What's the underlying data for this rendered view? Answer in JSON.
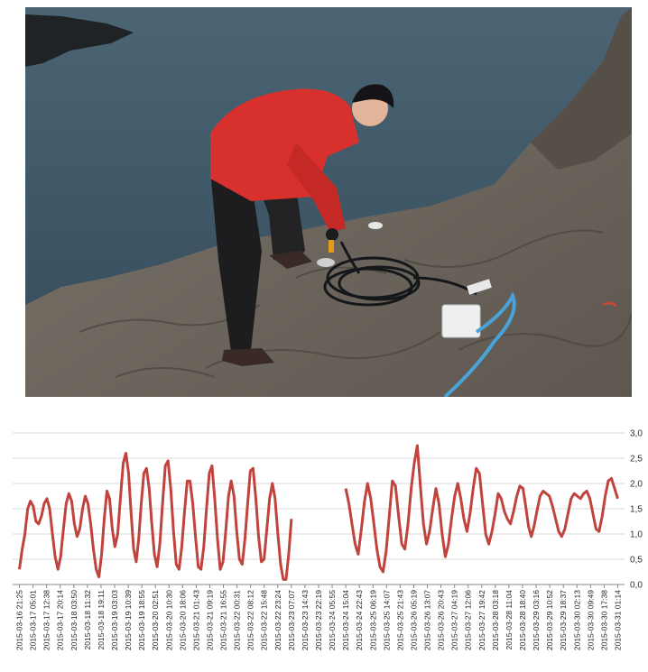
{
  "photo": {
    "subject": "researcher-with-sensor-on-coastal-rocks",
    "colors": {
      "sea": "#3f5968",
      "rock": "#6e675f",
      "jacket": "#d8302c",
      "trousers": "#1d1d1f",
      "cable": "#4aa3d8"
    }
  },
  "chart_data": {
    "type": "line",
    "title": "",
    "xlabel": "",
    "ylabel": "",
    "ylim": [
      0,
      3
    ],
    "y_ticks": [
      "0,0",
      "0,5",
      "1,0",
      "1,5",
      "2,0",
      "2,5",
      "3,0"
    ],
    "y_axis_side": "right",
    "grid": true,
    "line_color": "#c0433d",
    "x_tick_labels": [
      "2015-03-16 21:25",
      "2015-03-17 05:01",
      "2015-03-17 12:38",
      "2015-03-17 20:14",
      "2015-03-18 03:50",
      "2015-03-18 11:32",
      "2015-03-18 19:11",
      "2015-03-19 03:03",
      "2015-03-19 10:39",
      "2015-03-19 18:55",
      "2015-03-20 02:51",
      "2015-03-20 10:30",
      "2015-03-20 18:06",
      "2015-03-21 01:43",
      "2015-03-21 09:19",
      "2015-03-21 16:55",
      "2015-03-22 00:31",
      "2015-03-22 08:12",
      "2015-03-22 15:48",
      "2015-03-22 23:24",
      "2015-03-23 07:07",
      "2015-03-23 14:43",
      "2015-03-23 22:19",
      "2015-03-24 05:55",
      "2015-03-24 15:04",
      "2015-03-24 22:43",
      "2015-03-25 06:19",
      "2015-03-25 14:07",
      "2015-03-25 21:43",
      "2015-03-26 05:19",
      "2015-03-26 13:07",
      "2015-03-26 20:43",
      "2015-03-27 04:19",
      "2015-03-27 12:06",
      "2015-03-27 19:42",
      "2015-03-28 03:18",
      "2015-03-28 11:04",
      "2015-03-28 18:40",
      "2015-03-29 03:16",
      "2015-03-29 10:52",
      "2015-03-29 18:37",
      "2015-03-30 02:13",
      "2015-03-30 09:49",
      "2015-03-30 17:38",
      "2015-03-31 01:14"
    ],
    "series": [
      {
        "x_start": "2015-03-16 21:25",
        "x_end": "2015-03-23 07:07",
        "values": [
          0.3,
          0.7,
          1.0,
          1.5,
          1.65,
          1.55,
          1.25,
          1.2,
          1.35,
          1.6,
          1.7,
          1.5,
          1.0,
          0.55,
          0.3,
          0.55,
          1.1,
          1.6,
          1.8,
          1.65,
          1.2,
          0.95,
          1.1,
          1.5,
          1.75,
          1.6,
          1.2,
          0.7,
          0.3,
          0.15,
          0.6,
          1.3,
          1.85,
          1.7,
          1.1,
          0.75,
          1.0,
          1.7,
          2.4,
          2.6,
          2.2,
          1.4,
          0.7,
          0.45,
          0.9,
          1.6,
          2.2,
          2.3,
          1.9,
          1.2,
          0.6,
          0.35,
          0.8,
          1.6,
          2.35,
          2.45,
          1.9,
          1.05,
          0.4,
          0.3,
          0.75,
          1.45,
          2.05,
          2.05,
          1.6,
          0.95,
          0.35,
          0.3,
          0.75,
          1.5,
          2.2,
          2.35,
          1.7,
          0.9,
          0.3,
          0.45,
          1.05,
          1.75,
          2.05,
          1.75,
          1.05,
          0.5,
          0.4,
          0.9,
          1.6,
          2.25,
          2.3,
          1.7,
          0.95,
          0.45,
          0.5,
          1.1,
          1.7,
          2.0,
          1.7,
          1.0,
          0.4,
          0.1,
          0.1,
          0.6,
          1.3
        ]
      },
      {
        "x_start": "2015-03-24 15:04",
        "x_end": "2015-03-31 01:14",
        "values": [
          1.9,
          1.6,
          1.2,
          0.8,
          0.6,
          1.1,
          1.65,
          2.0,
          1.7,
          1.2,
          0.7,
          0.35,
          0.25,
          0.65,
          1.35,
          2.05,
          1.95,
          1.35,
          0.8,
          0.7,
          1.2,
          1.9,
          2.4,
          2.75,
          1.95,
          1.2,
          0.8,
          1.05,
          1.5,
          1.9,
          1.6,
          1.0,
          0.55,
          0.8,
          1.3,
          1.75,
          2.0,
          1.7,
          1.3,
          1.05,
          1.4,
          1.9,
          2.3,
          2.2,
          1.6,
          1.0,
          0.8,
          1.05,
          1.4,
          1.8,
          1.7,
          1.45,
          1.3,
          1.2,
          1.45,
          1.75,
          1.95,
          1.9,
          1.55,
          1.15,
          0.95,
          1.15,
          1.45,
          1.75,
          1.85,
          1.8,
          1.75,
          1.55,
          1.3,
          1.05,
          0.95,
          1.1,
          1.4,
          1.7,
          1.8,
          1.75,
          1.7,
          1.8,
          1.85,
          1.7,
          1.4,
          1.1,
          1.05,
          1.35,
          1.75,
          2.05,
          2.1,
          1.9,
          1.7
        ]
      }
    ]
  }
}
